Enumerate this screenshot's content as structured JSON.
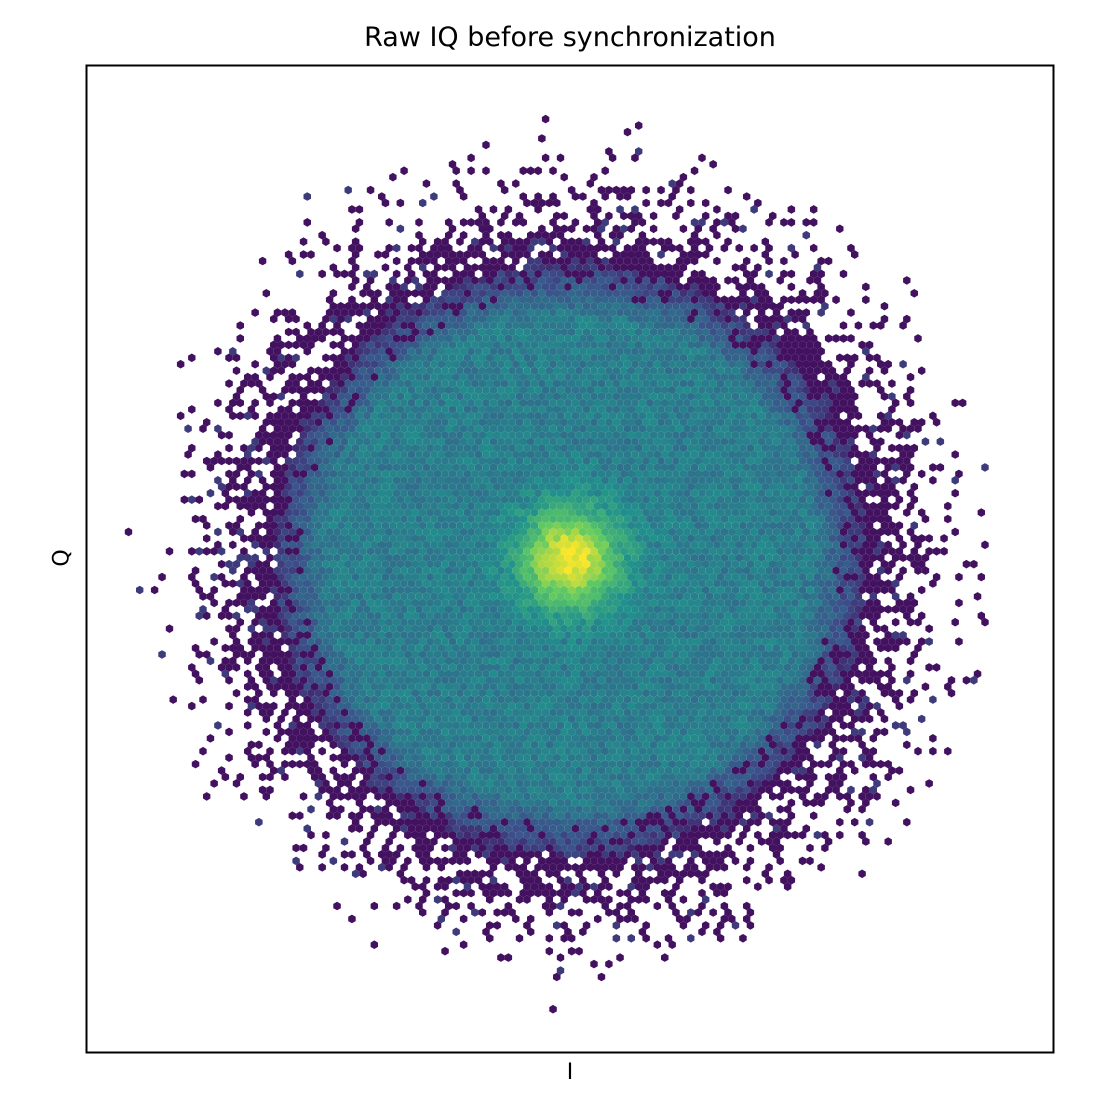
{
  "chart_data": {
    "type": "heatmap",
    "subtype": "hexbin",
    "title": "Raw IQ before synchronization",
    "xlabel": "I",
    "ylabel": "Q",
    "xlim": [
      -1.6,
      1.6
    ],
    "ylim": [
      -1.6,
      1.6
    ],
    "xticks": [],
    "yticks": [],
    "grid": false,
    "legend": "none",
    "colormap": "viridis",
    "colors": {
      "low": "#440154",
      "mid_low": "#3b528b",
      "mid": "#21918c",
      "mid_high": "#5ec962",
      "high": "#fde725"
    },
    "density_profile": {
      "center": [
        0.0,
        0.0
      ],
      "peak_radius": 0.16,
      "disk_radius": 0.98,
      "outer_scatter_radius": 1.52,
      "peak_density": 1.0,
      "disk_density": 0.42,
      "edge_density": 0.05
    }
  }
}
